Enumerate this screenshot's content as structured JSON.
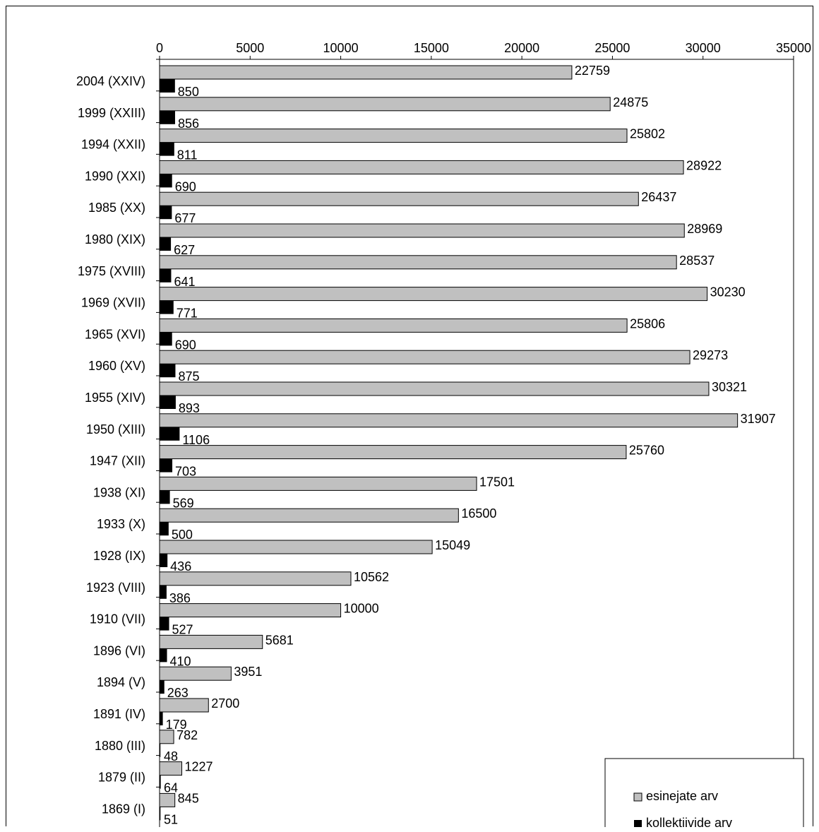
{
  "chart_data": {
    "type": "bar",
    "orientation": "horizontal",
    "title": "",
    "xlabel": "",
    "ylabel": "",
    "xlim": [
      0,
      35000
    ],
    "x_ticks": [
      "0",
      "5000",
      "10000",
      "15000",
      "20000",
      "25000",
      "30000",
      "35000"
    ],
    "x_axis_position": "top",
    "grid": false,
    "legend_position": "bottom-right",
    "categories": [
      "2004 (XXIV)",
      "1999 (XXIII)",
      "1994 (XXII)",
      "1990 (XXI)",
      "1985 (XX)",
      "1980 (XIX)",
      "1975 (XVIII)",
      "1969 (XVII)",
      "1965 (XVI)",
      "1960 (XV)",
      "1955 (XIV)",
      "1950 (XIII)",
      "1947 (XII)",
      "1938 (XI)",
      "1933 (X)",
      "1928 (IX)",
      "1923 (VIII)",
      "1910 (VII)",
      "1896 (VI)",
      "1894 (V)",
      "1891 (IV)",
      "1880 (III)",
      "1879 (II)",
      "1869 (I)"
    ],
    "series": [
      {
        "name": "esinejate arv",
        "color": "#c0c0c0",
        "values": [
          22759,
          24875,
          25802,
          28922,
          26437,
          28969,
          28537,
          30230,
          25806,
          29273,
          30321,
          31907,
          25760,
          17501,
          16500,
          15049,
          10562,
          10000,
          5681,
          3951,
          2700,
          782,
          1227,
          845
        ]
      },
      {
        "name": "kollektiivide arv",
        "color": "#000000",
        "values": [
          850,
          856,
          811,
          690,
          677,
          627,
          641,
          771,
          690,
          875,
          893,
          1106,
          703,
          569,
          500,
          436,
          386,
          527,
          410,
          263,
          179,
          48,
          64,
          51
        ]
      }
    ]
  }
}
